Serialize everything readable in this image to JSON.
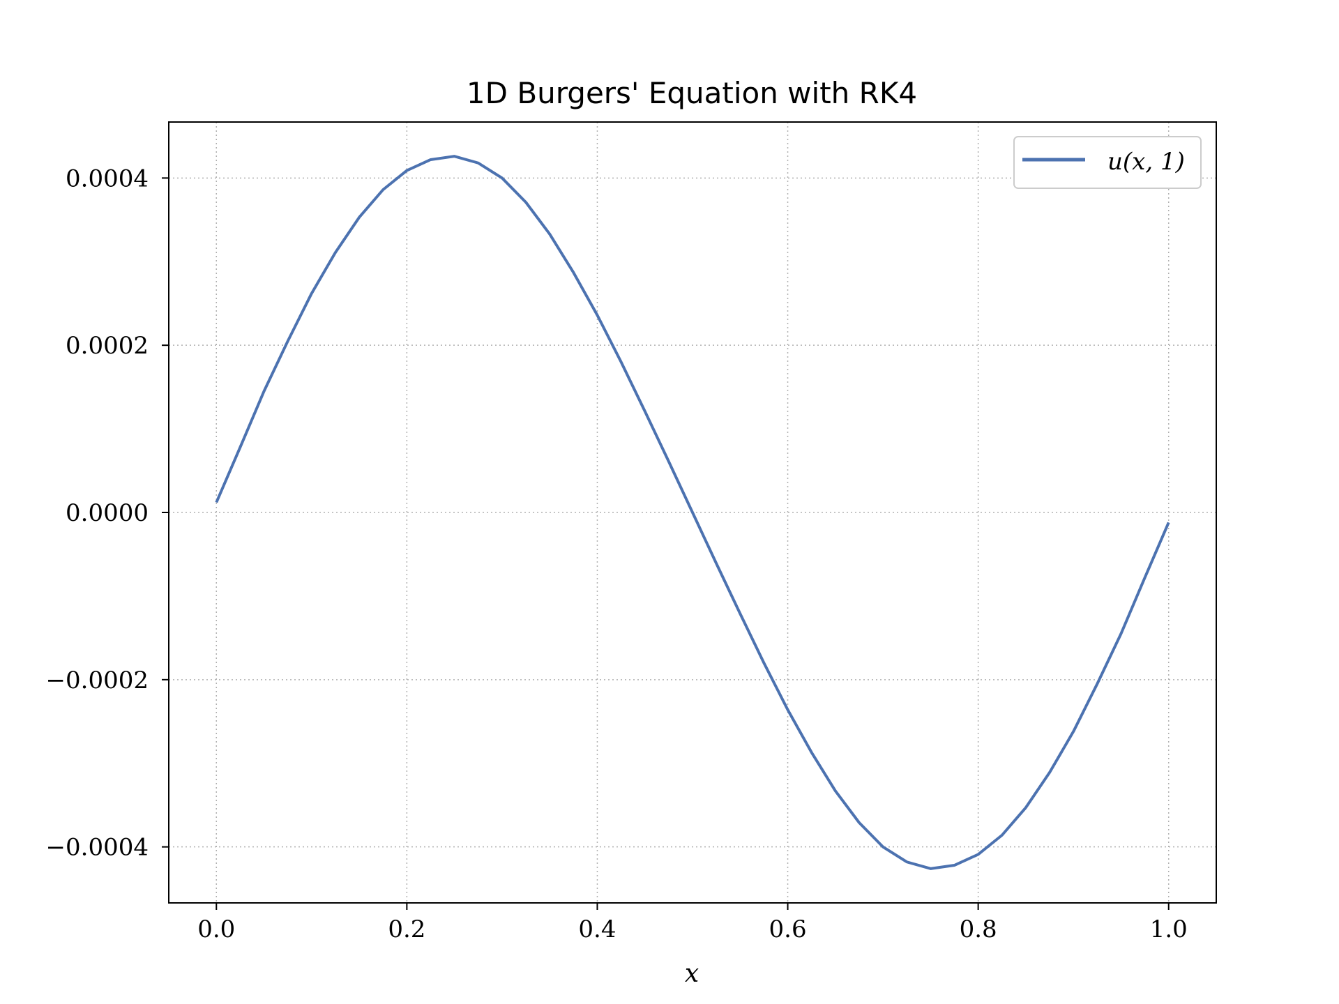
{
  "chart_data": {
    "type": "line",
    "title": "1D Burgers' Equation with RK4",
    "xlabel": "x",
    "ylabel": "",
    "xlim": [
      -0.05,
      1.05
    ],
    "ylim": [
      -0.000467,
      0.000467
    ],
    "x_ticks": [
      0.0,
      0.2,
      0.4,
      0.6,
      0.8,
      1.0
    ],
    "x_tick_labels": [
      "0.0",
      "0.2",
      "0.4",
      "0.6",
      "0.8",
      "1.0"
    ],
    "y_ticks": [
      0.0004,
      0.0002,
      0.0,
      -0.0002,
      -0.0004
    ],
    "y_tick_labels": [
      "0.0004",
      "0.0002",
      "0.0000",
      "−0.0002",
      "−0.0004"
    ],
    "grid": true,
    "legend_position": "top-right",
    "series": [
      {
        "name": "u(x, 1)",
        "color": "#4c72b0",
        "x": [
          0.0,
          0.025,
          0.05,
          0.075,
          0.1,
          0.125,
          0.15,
          0.175,
          0.2,
          0.225,
          0.25,
          0.275,
          0.3,
          0.325,
          0.35,
          0.375,
          0.4,
          0.425,
          0.45,
          0.475,
          0.5,
          0.525,
          0.55,
          0.575,
          0.6,
          0.625,
          0.65,
          0.675,
          0.7,
          0.725,
          0.75,
          0.775,
          0.8,
          0.825,
          0.85,
          0.875,
          0.9,
          0.925,
          0.95,
          0.975,
          1.0
        ],
        "y": [
          1.2e-05,
          7.8e-05,
          0.000145,
          0.000205,
          0.000262,
          0.000311,
          0.000353,
          0.000386,
          0.000409,
          0.000422,
          0.000426,
          0.000418,
          0.0004,
          0.000371,
          0.000333,
          0.000287,
          0.000236,
          0.00018,
          0.000121,
          6.1e-05,
          0.0,
          -6.1e-05,
          -0.000121,
          -0.00018,
          -0.000236,
          -0.000287,
          -0.000333,
          -0.000371,
          -0.0004,
          -0.000418,
          -0.000426,
          -0.000422,
          -0.000409,
          -0.000386,
          -0.000353,
          -0.000311,
          -0.000262,
          -0.000205,
          -0.000145,
          -7.8e-05,
          -1.2e-05
        ]
      }
    ]
  }
}
